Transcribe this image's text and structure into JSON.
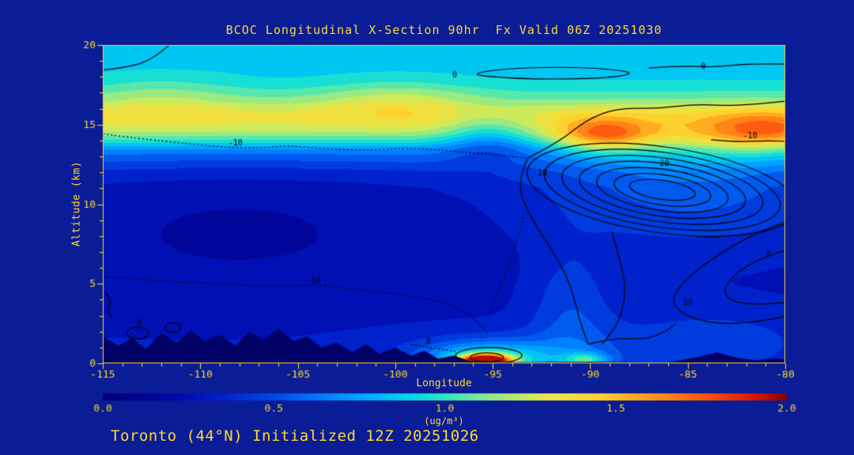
{
  "page": {
    "footer": "Toronto (44°N) Initialized 12Z 20251026"
  },
  "colors": {
    "background": "#0a1c96",
    "text": "#ffd92e",
    "frame": "#ffd92e",
    "contour_line": "#000000",
    "terrain": "#000066"
  },
  "chart_data": {
    "type": "heatmap",
    "title": "BCOC Longitudinal X-Section 90hr  Fx Valid 06Z 20251030",
    "xlabel": "Longitude",
    "ylabel": "Altitude (km)",
    "xlim": [
      -115,
      -80
    ],
    "ylim": [
      0,
      20
    ],
    "xticks": [
      "-115",
      "-110",
      "-105",
      "-100",
      "-95",
      "-90",
      "-85",
      "-80"
    ],
    "yticks": [
      "0",
      "5",
      "10",
      "15",
      "20"
    ],
    "x_minor_step": 1,
    "y_minor_step": 1,
    "grid": false,
    "legend_position": "none",
    "colorbar": {
      "label": "(ug/m³)",
      "ticks": [
        "0.0",
        "0.5",
        "1.0",
        "1.5",
        "2.0"
      ],
      "min": 0,
      "max": 2
    },
    "band_interval": 0.1,
    "colormap": [
      [
        0.0,
        "#000072"
      ],
      [
        0.2,
        "#0008a8"
      ],
      [
        0.35,
        "#0022cc"
      ],
      [
        0.5,
        "#0048e8"
      ],
      [
        0.65,
        "#0080ff"
      ],
      [
        0.8,
        "#00b4ff"
      ],
      [
        0.9,
        "#00d8e8"
      ],
      [
        1.0,
        "#2ee6c0"
      ],
      [
        1.1,
        "#7fe89a"
      ],
      [
        1.2,
        "#b4ec6a"
      ],
      [
        1.3,
        "#e8e84a"
      ],
      [
        1.45,
        "#ffd22e"
      ],
      [
        1.6,
        "#ff9a1a"
      ],
      [
        1.75,
        "#ff5a0e"
      ],
      [
        1.9,
        "#e01800"
      ],
      [
        2.0,
        "#8c0000"
      ]
    ],
    "base_profile": [
      [
        0,
        0.32
      ],
      [
        2,
        0.3
      ],
      [
        4,
        0.28
      ],
      [
        6,
        0.28
      ],
      [
        8,
        0.3
      ],
      [
        10,
        0.32
      ],
      [
        11,
        0.34
      ],
      [
        12,
        0.42
      ],
      [
        13,
        0.6
      ],
      [
        13.5,
        0.75
      ],
      [
        14,
        1.0
      ],
      [
        14.5,
        1.2
      ],
      [
        15,
        1.3
      ],
      [
        15.5,
        1.32
      ],
      [
        16,
        1.25
      ],
      [
        16.5,
        1.1
      ],
      [
        17,
        1.0
      ],
      [
        17.5,
        0.92
      ],
      [
        18,
        0.88
      ],
      [
        19,
        0.85
      ],
      [
        20,
        0.85
      ]
    ],
    "features": [
      {
        "x": -108,
        "y": 9,
        "sx": 8,
        "sy": 3,
        "a": -0.12
      },
      {
        "x": -85,
        "y": 11,
        "sx": 5,
        "sy": 2.5,
        "a": 0.22
      },
      {
        "x": -84,
        "y": 1.5,
        "sx": 4,
        "sy": 1.5,
        "a": 0.15
      },
      {
        "x": -91,
        "y": 3,
        "sx": 1.5,
        "sy": 3,
        "a": 0.2
      },
      {
        "x": -89.3,
        "y": 14.3,
        "sx": 1.6,
        "sy": 0.75,
        "a": 0.5
      },
      {
        "x": -81,
        "y": 14.6,
        "sx": 2.0,
        "sy": 0.9,
        "a": 0.35
      },
      {
        "x": -95.2,
        "y": 14.2,
        "sx": 1.6,
        "sy": 1.0,
        "a": -0.3
      },
      {
        "x": -83,
        "y": 13.9,
        "sx": 4,
        "sy": 1.1,
        "a": 0.18
      },
      {
        "x": -100,
        "y": 16.6,
        "sx": 3,
        "sy": 0.9,
        "a": 0.2
      },
      {
        "x": -112,
        "y": 16.8,
        "sx": 3,
        "sy": 1.0,
        "a": 0.15
      },
      {
        "x": -95.4,
        "y": 0.15,
        "sx": 0.9,
        "sy": 0.28,
        "a": 1.7
      },
      {
        "x": -95.2,
        "y": 0.3,
        "sx": 2.2,
        "sy": 0.7,
        "a": 0.5
      },
      {
        "x": -94.5,
        "y": 0.5,
        "sx": 4.0,
        "sy": 1.0,
        "a": 0.2
      },
      {
        "x": -90.2,
        "y": 0.25,
        "sx": 0.8,
        "sy": 0.3,
        "a": 0.45
      }
    ],
    "terrain": [
      [
        -115,
        1.7
      ],
      [
        -114.2,
        1.1
      ],
      [
        -113.5,
        1.6
      ],
      [
        -112.8,
        0.9
      ],
      [
        -112,
        1.9
      ],
      [
        -111.2,
        1.3
      ],
      [
        -110.5,
        2.1
      ],
      [
        -109.8,
        1.4
      ],
      [
        -109,
        1.8
      ],
      [
        -108.2,
        1.1
      ],
      [
        -107.5,
        2.0
      ],
      [
        -106.8,
        1.5
      ],
      [
        -106,
        2.2
      ],
      [
        -105.2,
        1.4
      ],
      [
        -104.5,
        1.7
      ],
      [
        -103.8,
        1.0
      ],
      [
        -103,
        1.3
      ],
      [
        -102.2,
        0.7
      ],
      [
        -101.5,
        1.2
      ],
      [
        -100.8,
        0.6
      ],
      [
        -100,
        1.0
      ],
      [
        -99.2,
        0.5
      ],
      [
        -98.5,
        0.8
      ],
      [
        -97.8,
        0.3
      ],
      [
        -97,
        0.5
      ],
      [
        -96.2,
        0.15
      ],
      [
        -95,
        0.1
      ],
      [
        -93,
        0.08
      ],
      [
        -90,
        0.1
      ],
      [
        -88,
        0.06
      ],
      [
        -86,
        0.05
      ],
      [
        -84.5,
        0.4
      ],
      [
        -83.5,
        0.7
      ],
      [
        -82.5,
        0.35
      ],
      [
        -81.5,
        0.2
      ],
      [
        -80.5,
        0.3
      ],
      [
        -80,
        0.25
      ]
    ],
    "contour_overlays": [
      {
        "kind": "polyline",
        "pts": [
          [
            -111.3,
            20.3
          ],
          [
            -112.3,
            19.2
          ],
          [
            -113.6,
            18.6
          ],
          [
            -115.2,
            18.4
          ]
        ]
      },
      {
        "kind": "polyline",
        "closed": true,
        "pts": [
          [
            -96.3,
            18.15
          ],
          [
            -94.5,
            18.5
          ],
          [
            -92,
            18.62
          ],
          [
            -89.5,
            18.55
          ],
          [
            -87.6,
            18.25
          ],
          [
            -89,
            17.95
          ],
          [
            -91.5,
            17.85
          ],
          [
            -94,
            17.9
          ]
        ]
      },
      {
        "kind": "polyline",
        "pts": [
          [
            -87,
            18.55
          ],
          [
            -85.3,
            18.7
          ],
          [
            -83.5,
            18.6
          ],
          [
            -81.8,
            18.85
          ],
          [
            -79.8,
            18.8
          ]
        ]
      },
      {
        "kind": "polyline",
        "dashed": true,
        "pts": [
          [
            -115.2,
            14.45
          ],
          [
            -113,
            14.1
          ],
          [
            -111,
            13.85
          ],
          [
            -109,
            13.6
          ],
          [
            -107,
            13.5
          ],
          [
            -105.5,
            13.7
          ],
          [
            -103.5,
            13.45
          ],
          [
            -101,
            13.4
          ],
          [
            -99,
            13.55
          ],
          [
            -97,
            13.3
          ],
          [
            -95,
            13.15
          ],
          [
            -93.3,
            12.9
          ]
        ]
      },
      {
        "kind": "polyline",
        "pts": [
          [
            -83.8,
            14.05
          ],
          [
            -82.5,
            13.9
          ],
          [
            -81,
            14.0
          ],
          [
            -79.8,
            13.95
          ]
        ]
      },
      {
        "kind": "polyline",
        "pts": [
          [
            -93.2,
            12.9
          ],
          [
            -91.6,
            13.9
          ],
          [
            -90.2,
            15.3
          ],
          [
            -88.6,
            16.05
          ],
          [
            -86.6,
            16.0
          ],
          [
            -84.6,
            16.3
          ],
          [
            -82.4,
            16.15
          ],
          [
            -79.8,
            16.5
          ]
        ]
      },
      {
        "kind": "polyline",
        "pts": [
          [
            -93.2,
            12.9
          ],
          [
            -93.7,
            11.5
          ],
          [
            -93.4,
            10.0
          ],
          [
            -92.7,
            8.5
          ],
          [
            -91.9,
            7.0
          ],
          [
            -91.2,
            5.5
          ],
          [
            -90.8,
            4.0
          ],
          [
            -90.5,
            2.5
          ],
          [
            -90.1,
            1.2
          ]
        ]
      },
      {
        "kind": "polyline",
        "pts": [
          [
            -88.9,
            8.3
          ],
          [
            -88.5,
            6.6
          ],
          [
            -88.2,
            5.0
          ],
          [
            -88.3,
            3.5
          ],
          [
            -88.7,
            2.2
          ],
          [
            -89.4,
            1.2
          ]
        ]
      },
      {
        "kind": "ellipse",
        "cx": -86.3,
        "cy": 10.9,
        "rx": 7.0,
        "ry": 2.7,
        "rot": 8
      },
      {
        "kind": "ellipse",
        "cx": -86.3,
        "cy": 10.9,
        "rx": 6.1,
        "ry": 2.35,
        "rot": 8
      },
      {
        "kind": "ellipse",
        "cx": -86.3,
        "cy": 10.9,
        "rx": 5.2,
        "ry": 2.0,
        "rot": 8
      },
      {
        "kind": "ellipse",
        "cx": -86.3,
        "cy": 10.9,
        "rx": 4.3,
        "ry": 1.65,
        "rot": 8
      },
      {
        "kind": "ellipse",
        "cx": -86.3,
        "cy": 10.9,
        "rx": 3.4,
        "ry": 1.3,
        "rot": 8
      },
      {
        "kind": "ellipse",
        "cx": -86.3,
        "cy": 10.9,
        "rx": 2.5,
        "ry": 0.95,
        "rot": 8
      },
      {
        "kind": "ellipse",
        "cx": -86.3,
        "cy": 10.9,
        "rx": 1.7,
        "ry": 0.6,
        "rot": 8
      },
      {
        "kind": "polyline",
        "pts": [
          [
            -79.8,
            9.0
          ],
          [
            -81.5,
            8.2
          ],
          [
            -83.5,
            6.8
          ],
          [
            -85.2,
            5.2
          ],
          [
            -85.9,
            3.9
          ],
          [
            -85.1,
            2.95
          ],
          [
            -83.4,
            2.45
          ],
          [
            -81.4,
            2.6
          ],
          [
            -79.8,
            3.0
          ]
        ]
      },
      {
        "kind": "polyline",
        "pts": [
          [
            -79.8,
            7.2
          ],
          [
            -81.3,
            6.6
          ],
          [
            -82.6,
            5.6
          ],
          [
            -83.2,
            4.6
          ],
          [
            -82.8,
            3.9
          ],
          [
            -81.5,
            3.65
          ],
          [
            -79.8,
            3.85
          ]
        ]
      },
      {
        "kind": "polyline",
        "dashed": true,
        "pts": [
          [
            -115.2,
            5.5
          ],
          [
            -112,
            5.15
          ],
          [
            -109,
            5.0
          ],
          [
            -106.5,
            4.85
          ],
          [
            -104,
            4.95
          ],
          [
            -102,
            4.6
          ],
          [
            -100,
            4.4
          ],
          [
            -98,
            4.0
          ],
          [
            -96.6,
            3.4
          ],
          [
            -95.7,
            2.6
          ],
          [
            -95.2,
            1.8
          ]
        ]
      },
      {
        "kind": "polyline",
        "dashed": true,
        "pts": [
          [
            -93.4,
            9.2
          ],
          [
            -93.8,
            7.6
          ],
          [
            -94.2,
            6.1
          ],
          [
            -94.7,
            4.6
          ],
          [
            -95.1,
            3.3
          ]
        ]
      },
      {
        "kind": "ellipse",
        "cx": -113.2,
        "cy": 1.9,
        "rx": 0.55,
        "ry": 0.38
      },
      {
        "kind": "ellipse",
        "cx": -111.4,
        "cy": 2.25,
        "rx": 0.4,
        "ry": 0.3
      },
      {
        "kind": "polyline",
        "pts": [
          [
            -114.9,
            4.5
          ],
          [
            -114.5,
            3.9
          ],
          [
            -114.85,
            3.3
          ],
          [
            -114.5,
            2.8
          ]
        ]
      },
      {
        "kind": "ellipse",
        "cx": -95.2,
        "cy": 0.5,
        "rx": 1.7,
        "ry": 0.5
      },
      {
        "kind": "ellipse",
        "cx": -95.3,
        "cy": 0.38,
        "rx": 0.85,
        "ry": 0.28
      },
      {
        "kind": "polyline",
        "dashed": true,
        "pts": [
          [
            -99.2,
            1.2
          ],
          [
            -97.8,
            0.9
          ],
          [
            -96.9,
            0.75
          ]
        ]
      },
      {
        "kind": "polyline",
        "pts": [
          [
            -90.1,
            1.2
          ],
          [
            -88.8,
            1.6
          ],
          [
            -87.3,
            1.5
          ],
          [
            -86.2,
            1.9
          ],
          [
            -85.6,
            2.5
          ]
        ]
      }
    ],
    "contour_labels": [
      {
        "text": "0",
        "x": -96.95,
        "y": 18.1
      },
      {
        "text": "0",
        "x": -84.2,
        "y": 18.62
      },
      {
        "text": "-10",
        "x": -108.2,
        "y": 13.85
      },
      {
        "text": "-10",
        "x": -81.8,
        "y": 14.25
      },
      {
        "text": "10",
        "x": -92.45,
        "y": 11.95
      },
      {
        "text": "20",
        "x": -86.2,
        "y": 12.55
      },
      {
        "text": "10",
        "x": -85.0,
        "y": 3.8
      },
      {
        "text": "0",
        "x": -80.85,
        "y": 6.85
      },
      {
        "text": "-10",
        "x": -104.2,
        "y": 5.15
      },
      {
        "text": "0",
        "x": -113.1,
        "y": 2.5
      },
      {
        "text": "0",
        "x": -98.3,
        "y": 1.35
      }
    ]
  }
}
